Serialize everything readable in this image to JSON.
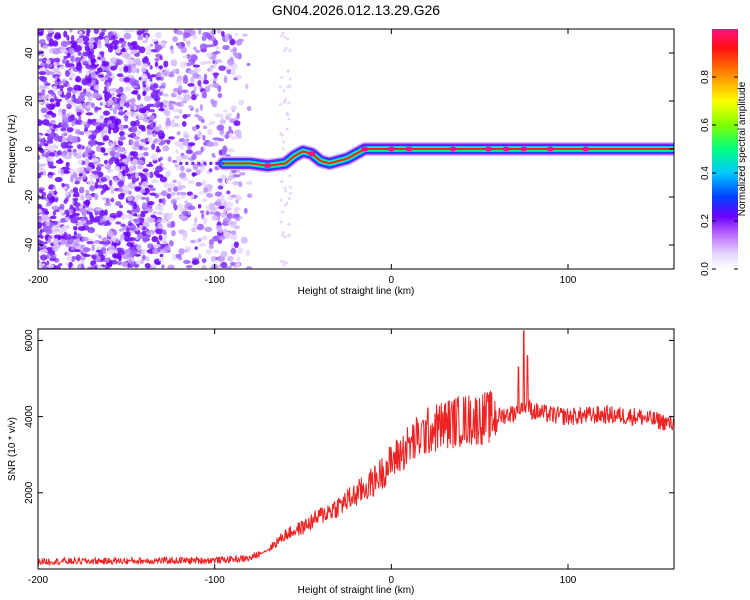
{
  "title": "GN04.2026.012.13.29.G26",
  "colors": {
    "line": "#ee2222",
    "axis": "#000000",
    "background": "#ffffff"
  },
  "chart_data": [
    {
      "type": "heatmap",
      "name": "spectrogram",
      "xlabel": "Height of straight line (km)",
      "ylabel": "Frequency (Hz)",
      "xlim": [
        -200,
        160
      ],
      "ylim": [
        -50,
        50
      ],
      "xticks": [
        -200,
        -100,
        0,
        100
      ],
      "xtick_labels": [
        "-200",
        "-100",
        "0",
        "100"
      ],
      "yticks": [
        -40,
        -20,
        0,
        20,
        40
      ],
      "ytick_labels": [
        "-40",
        "-20",
        "0",
        "20",
        "40"
      ],
      "colorbar": {
        "label": "Normalized spectral amplitude",
        "range": [
          0.0,
          1.0
        ],
        "ticks": [
          0.0,
          0.2,
          0.4,
          0.6,
          0.8
        ],
        "tick_labels": [
          "0.0",
          "0.2",
          "0.4",
          "0.6",
          "0.8"
        ],
        "colormap": "rainbow (white-magenta-blue-cyan-green-yellow-red)"
      },
      "signal_trace": {
        "description": "dominant tone frequency vs height",
        "x": [
          -95,
          -90,
          -80,
          -70,
          -60,
          -55,
          -50,
          -45,
          -40,
          -35,
          -30,
          -25,
          -20,
          -15,
          -10,
          0,
          10,
          30,
          60,
          80,
          100,
          160
        ],
        "y": [
          -6,
          -6,
          -6,
          -7,
          -6,
          -3,
          -1,
          -2,
          -5,
          -6,
          -5,
          -4,
          -2,
          0,
          0,
          0,
          0,
          0,
          0,
          0,
          0,
          0
        ]
      },
      "noise_region": {
        "x_range": [
          -200,
          -80
        ],
        "description": "scattered noise across all frequencies"
      }
    },
    {
      "type": "line",
      "name": "snr",
      "xlabel": "Height of straight line (km)",
      "ylabel": "SNR (10 * v/v)",
      "xlim": [
        -200,
        160
      ],
      "ylim": [
        0,
        6300
      ],
      "xticks": [
        -200,
        -100,
        0,
        100
      ],
      "xtick_labels": [
        "-200",
        "-100",
        "0",
        "100"
      ],
      "yticks": [
        2000,
        4000,
        6000
      ],
      "ytick_labels": [
        "2000",
        "4000",
        "6000"
      ],
      "series": [
        {
          "name": "SNR",
          "x": [
            -200,
            -150,
            -100,
            -80,
            -70,
            -60,
            -50,
            -40,
            -30,
            -20,
            -10,
            0,
            10,
            20,
            30,
            40,
            50,
            60,
            70,
            75,
            80,
            90,
            100,
            120,
            140,
            160
          ],
          "y": [
            200,
            210,
            230,
            280,
            500,
            900,
            1100,
            1400,
            1650,
            1950,
            2300,
            2800,
            3250,
            3600,
            3800,
            3900,
            3950,
            4000,
            4100,
            4300,
            4150,
            4050,
            4000,
            4050,
            4000,
            3800
          ],
          "spikes": [
            {
              "x": 75,
              "y": 6250
            },
            {
              "x": 72,
              "y": 5300
            },
            {
              "x": 77,
              "y": 5600
            }
          ]
        }
      ]
    }
  ]
}
